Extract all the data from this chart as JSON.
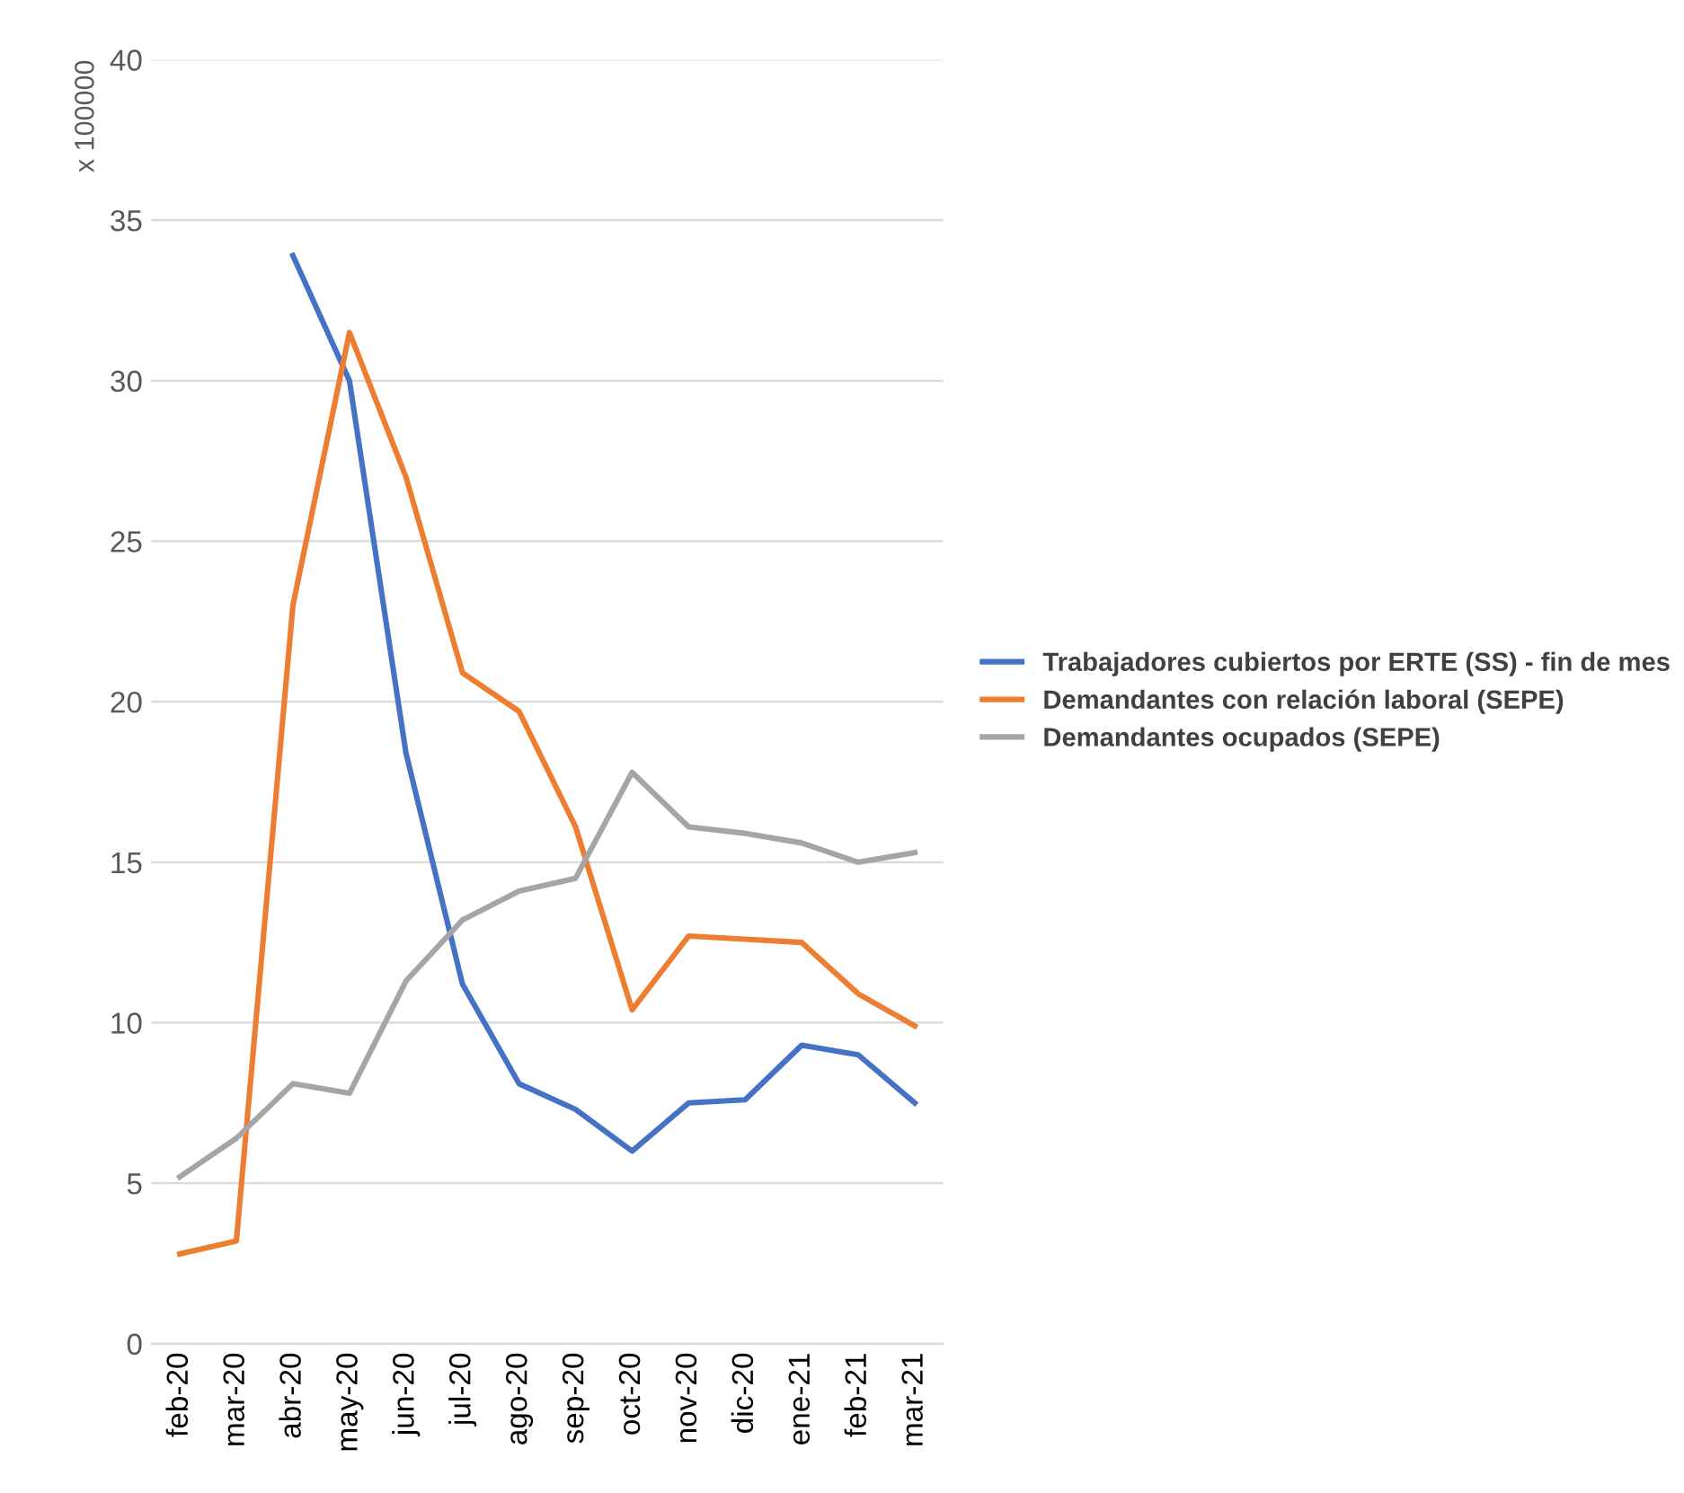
{
  "chart_data": {
    "type": "line",
    "ylabel": "x 100000",
    "categories": [
      "feb-20",
      "mar-20",
      "abr-20",
      "may-20",
      "jun-20",
      "jul-20",
      "ago-20",
      "sep-20",
      "oct-20",
      "nov-20",
      "dic-20",
      "ene-21",
      "feb-21",
      "mar-21"
    ],
    "series": [
      {
        "name": "Trabajadores cubiertos por ERTE (SS) - fin de mes",
        "color": "#4472c4",
        "values": [
          null,
          null,
          33.9,
          30.0,
          18.4,
          11.2,
          8.1,
          7.3,
          6.0,
          7.5,
          7.6,
          9.3,
          9.0,
          7.5
        ]
      },
      {
        "name": "Demandantes con relación laboral (SEPE)",
        "color": "#ed7d31",
        "values": [
          2.8,
          3.2,
          23.0,
          31.5,
          27.0,
          20.9,
          19.7,
          16.1,
          10.4,
          12.7,
          12.6,
          12.5,
          10.9,
          9.9
        ]
      },
      {
        "name": "Demandantes ocupados (SEPE)",
        "color": "#a5a5a5",
        "values": [
          5.2,
          6.4,
          8.1,
          7.8,
          11.3,
          13.2,
          14.1,
          14.5,
          17.8,
          16.1,
          15.9,
          15.6,
          15.0,
          15.3
        ]
      }
    ],
    "ylim": [
      0,
      40
    ],
    "yticks": [
      0,
      5,
      10,
      15,
      20,
      25,
      30,
      35,
      40
    ],
    "grid": "y",
    "legend": "right",
    "marker": "none",
    "line_style": "solid"
  }
}
